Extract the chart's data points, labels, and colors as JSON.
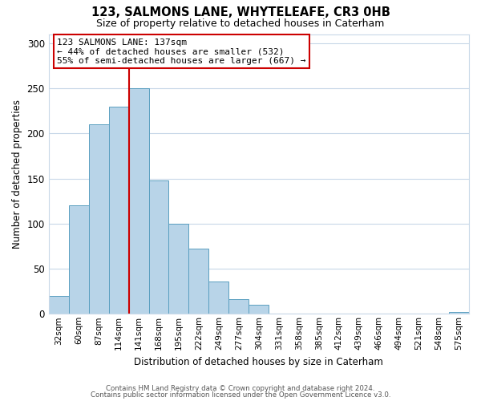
{
  "title": "123, SALMONS LANE, WHYTELEAFE, CR3 0HB",
  "subtitle": "Size of property relative to detached houses in Caterham",
  "xlabel": "Distribution of detached houses by size in Caterham",
  "ylabel": "Number of detached properties",
  "bar_labels": [
    "32sqm",
    "60sqm",
    "87sqm",
    "114sqm",
    "141sqm",
    "168sqm",
    "195sqm",
    "222sqm",
    "249sqm",
    "277sqm",
    "304sqm",
    "331sqm",
    "358sqm",
    "385sqm",
    "412sqm",
    "439sqm",
    "466sqm",
    "494sqm",
    "521sqm",
    "548sqm",
    "575sqm"
  ],
  "bar_values": [
    20,
    120,
    210,
    230,
    250,
    148,
    100,
    72,
    36,
    16,
    10,
    0,
    0,
    0,
    0,
    0,
    0,
    0,
    0,
    0,
    2
  ],
  "bar_color": "#b8d4e8",
  "bar_edge_color": "#5a9fc0",
  "vline_color": "#cc0000",
  "ylim": [
    0,
    310
  ],
  "yticks": [
    0,
    50,
    100,
    150,
    200,
    250,
    300
  ],
  "annotation_title": "123 SALMONS LANE: 137sqm",
  "annotation_line1": "← 44% of detached houses are smaller (532)",
  "annotation_line2": "55% of semi-detached houses are larger (667) →",
  "annotation_box_color": "#ffffff",
  "annotation_box_edge": "#cc0000",
  "footer1": "Contains HM Land Registry data © Crown copyright and database right 2024.",
  "footer2": "Contains public sector information licensed under the Open Government Licence v3.0.",
  "background_color": "#ffffff",
  "grid_color": "#c8d8e8"
}
